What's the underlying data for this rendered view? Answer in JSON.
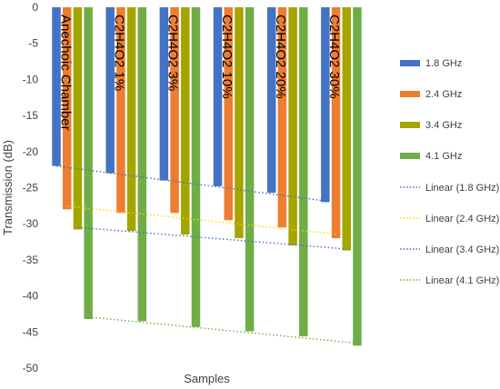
{
  "chart_data": {
    "type": "bar",
    "orientation": "vertical-bars-hanging-from-zero",
    "categories": [
      "Anechoic Chamber",
      "C2H4O2 1%",
      "C2H4O2 3%",
      "C2H4O2 10%",
      "C2H4O2 20%",
      "C2H4O2 30%"
    ],
    "series": [
      {
        "name": "1.8 GHz",
        "color": "#4472C4",
        "values": [
          -22,
          -23,
          -24,
          -24.8,
          -25.7,
          -27
        ]
      },
      {
        "name": "2.4 GHz",
        "color": "#ED7D31",
        "values": [
          -28,
          -28.5,
          -28.5,
          -29.5,
          -30.5,
          -32
        ]
      },
      {
        "name": "3.4 GHz",
        "color": "#A5A500",
        "values": [
          -30.8,
          -31,
          -31.5,
          -32,
          -33,
          -33.7
        ]
      },
      {
        "name": "4.1 GHz",
        "color": "#70AD47",
        "values": [
          -43.2,
          -43.5,
          -44.3,
          -44.9,
          -45.6,
          -46.9
        ]
      }
    ],
    "trendlines": [
      {
        "name": "Linear (1.8 GHz)",
        "color": "#4472C4",
        "style": "dotted"
      },
      {
        "name": "Linear (2.4 GHz)",
        "color": "#FFD700",
        "style": "dotted"
      },
      {
        "name": "Linear (3.4 GHz)",
        "color": "#4472C4",
        "style": "dotted"
      },
      {
        "name": "Linear (4.1 GHz)",
        "color": "#70AD47",
        "style": "dotted"
      }
    ],
    "ylabel": "Transmission (dB)",
    "xlabel": "Samples",
    "ylim": [
      -50,
      0
    ],
    "yticks": [
      0,
      -5,
      -10,
      -15,
      -20,
      -25,
      -30,
      -35,
      -40,
      -45,
      -50
    ],
    "grid": false,
    "legend_position": "right",
    "category_labels_position": "inside-top-rotated"
  }
}
